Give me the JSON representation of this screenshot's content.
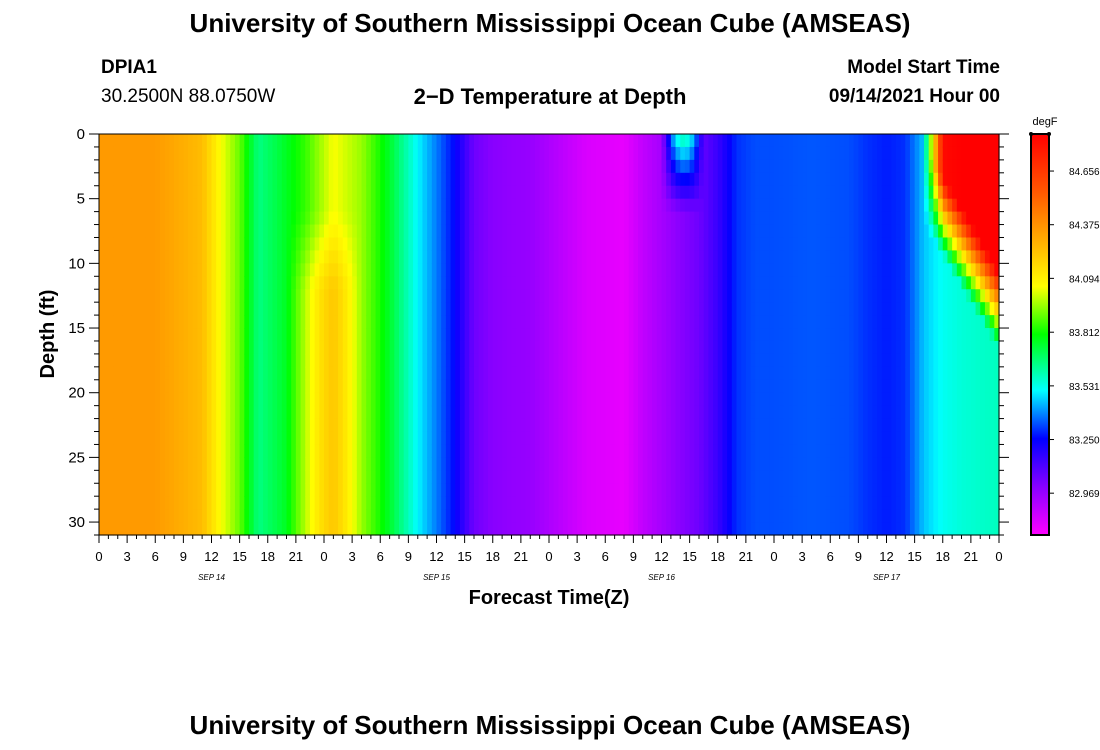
{
  "header": {
    "top_title": "University of Southern Mississippi Ocean Cube (AMSEAS)",
    "bottom_title": "University of Southern Mississippi Ocean Cube (AMSEAS)",
    "station_id": "DPIA1",
    "location": "30.2500N  88.0750W",
    "plot_title": "2−D Temperature at Depth",
    "start_label": "Model Start Time",
    "start_value": "09/14/2021 Hour 00"
  },
  "chart_data": {
    "type": "heatmap",
    "title": "2−D Temperature at Depth",
    "xlabel": "Forecast Time(Z)",
    "ylabel": "Depth (ft)",
    "ylim": [
      31,
      0
    ],
    "xlim_hours": [
      0,
      96
    ],
    "x_tick_labels": [
      "0",
      "3",
      "6",
      "9",
      "12",
      "15",
      "18",
      "21",
      "0",
      "3",
      "6",
      "9",
      "12",
      "15",
      "18",
      "21",
      "0",
      "3",
      "6",
      "9",
      "12",
      "15",
      "18",
      "21",
      "0",
      "3",
      "6",
      "9",
      "12",
      "15",
      "18",
      "21",
      "0"
    ],
    "y_ticks": [
      0,
      5,
      10,
      15,
      20,
      25,
      30
    ],
    "date_labels": [
      "SEP 14",
      "SEP 15",
      "SEP 16",
      "SEP 17"
    ],
    "colorbar": {
      "unit": "degF",
      "tick_labels": [
        "84.656",
        "84.375",
        "84.094",
        "83.812",
        "83.531",
        "83.250",
        "82.969"
      ],
      "range": [
        82.75,
        84.85
      ]
    },
    "bottom_temperature_profile": {
      "hours": [
        0,
        6,
        11,
        13,
        15,
        17,
        19,
        22,
        25,
        28,
        31,
        34,
        38,
        40,
        42,
        44,
        46,
        49,
        52,
        56,
        58,
        62,
        64,
        66,
        68,
        70,
        72,
        76,
        80,
        82,
        84,
        86,
        88,
        90,
        92,
        96
      ],
      "temperature_degF": [
        84.35,
        84.35,
        84.25,
        84.05,
        83.9,
        83.65,
        83.72,
        83.85,
        84.05,
        83.95,
        83.75,
        83.5,
        83.25,
        83.05,
        83.0,
        82.98,
        82.97,
        82.9,
        82.83,
        82.8,
        82.88,
        83.0,
        83.05,
        83.15,
        83.3,
        83.33,
        83.33,
        83.34,
        83.33,
        83.3,
        83.28,
        83.3,
        83.45,
        83.52,
        83.55,
        83.58
      ]
    }
  }
}
